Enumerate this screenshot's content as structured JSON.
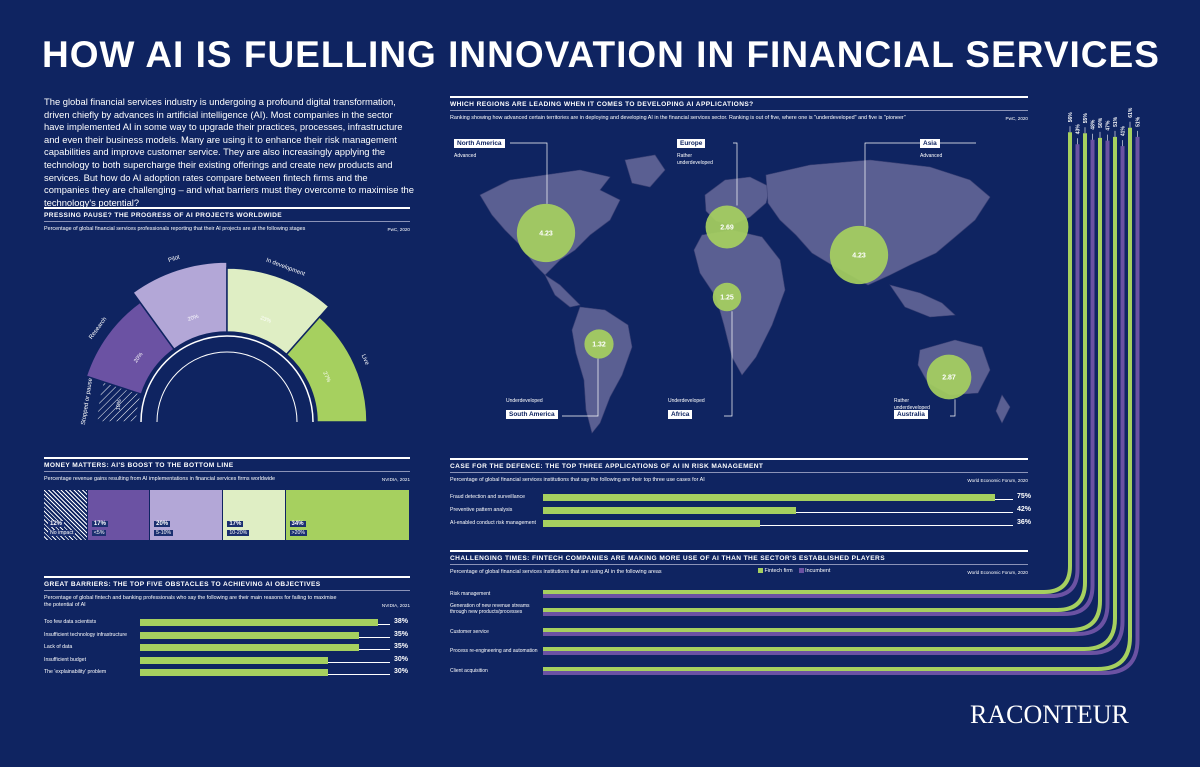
{
  "title": "HOW AI IS FUELLING INNOVATION IN FINANCIAL SERVICES",
  "intro": "The global financial services industry is undergoing a profound digital transformation, driven chiefly by advances in artificial intelligence (AI). Most companies in the sector have implemented AI in some way to upgrade their practices, processes, infrastructure and even their business models. Many are using it to enhance their risk management capabilities and improve customer service. They are also increasingly applying the technology to both supercharge their existing offerings and create new products and services. But how do AI adoption rates compare between fintech firms and the companies they are challenging – and what barriers must they overcome to maximise the technology's potential?",
  "logo": "RACONTEUR",
  "colors": {
    "bg": "#0f2461",
    "green": "#a6d05f",
    "purple": "#6b52a3",
    "lilac": "#b3a7d7",
    "pale": "#dfeec4",
    "map": "#5a5f92"
  },
  "chart_data": [
    {
      "id": "ai-projects",
      "type": "pie",
      "title": "PRESSING PAUSE? THE PROGRESS OF AI PROJECTS WORLDWIDE",
      "subtitle": "Percentage of global financial services professionals reporting that their AI projects are at the following stages",
      "source": "PwC, 2020",
      "categories": [
        "Stopped or paused",
        "Research",
        "Pilot",
        "In development",
        "Live"
      ],
      "values": [
        10,
        20,
        20,
        23,
        27
      ],
      "labels": [
        "10%",
        "20%",
        "20%",
        "23%",
        "27%"
      ]
    },
    {
      "id": "regions",
      "type": "scatter",
      "title": "WHICH REGIONS ARE LEADING WHEN IT COMES TO DEVELOPING AI APPLICATIONS?",
      "subtitle": "Ranking showing how advanced certain territories are in deploying and developing AI in the financial services sector. Ranking is out of five, where one is \"underdeveloped\" and five is \"pioneer\"",
      "source": "PwC, 2020",
      "regions": [
        {
          "name": "North America",
          "desc": "Advanced",
          "value": 4.23,
          "label": "4.23"
        },
        {
          "name": "Europe",
          "desc": "Rather underdeveloped",
          "value": 2.69,
          "label": "2.69"
        },
        {
          "name": "Asia",
          "desc": "Advanced",
          "value": 4.23,
          "label": "4.23"
        },
        {
          "name": "Africa",
          "desc": "Underdeveloped",
          "value": 1.25,
          "label": "1.25"
        },
        {
          "name": "South America",
          "desc": "Underdeveloped",
          "value": 1.32,
          "label": "1.32"
        },
        {
          "name": "Australia",
          "desc": "Rather underdeveloped",
          "value": 2.87,
          "label": "2.87"
        }
      ]
    },
    {
      "id": "money-matters",
      "type": "bar",
      "title": "MONEY MATTERS: AI'S BOOST TO THE BOTTOM LINE",
      "subtitle": "Percentage revenue gains resulting from AI implementations in financial services firms worldwide",
      "source": "NVIDIA, 2021",
      "categories": [
        "No impact",
        "<5%",
        "5-10%",
        "10-20%",
        ">20%"
      ],
      "values": [
        12,
        17,
        20,
        17,
        34
      ],
      "labels": [
        "12%",
        "17%",
        "20%",
        "17%",
        "34%"
      ]
    },
    {
      "id": "risk",
      "type": "bar",
      "title": "CASE FOR THE DEFENCE: THE TOP THREE APPLICATIONS OF AI IN RISK MANAGEMENT",
      "subtitle": "Percentage of global financial services institutions that say the following are their top three use cases for AI",
      "source": "World Economic Forum, 2020",
      "categories": [
        "Fraud detection and surveillance",
        "Preventive pattern analysis",
        "AI-enabled conduct risk management"
      ],
      "values": [
        75,
        42,
        36
      ],
      "labels": [
        "75",
        "42",
        "36"
      ],
      "xlim": [
        0,
        78
      ]
    },
    {
      "id": "barriers",
      "type": "bar",
      "title": "GREAT BARRIERS: THE TOP FIVE OBSTACLES TO ACHIEVING AI OBJECTIVES",
      "subtitle": "Percentage of global fintech and banking professionals who say the following are their main reasons for failing to maximise the potential of AI",
      "source": "NVIDIA, 2021",
      "categories": [
        "Too few data scientists",
        "Insufficient technology infrastructure",
        "Lack of data",
        "Insufficient budget",
        "The 'explainability' problem"
      ],
      "values": [
        38,
        35,
        35,
        30,
        30
      ],
      "labels": [
        "38",
        "35",
        "35",
        "30",
        "30"
      ],
      "xlim": [
        0,
        40
      ]
    },
    {
      "id": "fintech",
      "type": "bar",
      "title": "CHALLENGING TIMES: FINTECH COMPANIES ARE MAKING MORE USE OF AI THAN THE SECTOR'S ESTABLISHED PLAYERS",
      "subtitle": "Percentage of global financial services institutions that are using AI in the following areas",
      "source": "World Economic Forum, 2020",
      "categories": [
        "Risk management",
        "Generation of new revenue streams through new products/processes",
        "Customer service",
        "Process re-engineering and automation",
        "Client acquisition"
      ],
      "series": [
        {
          "name": "Fintech firm",
          "values": [
            56,
            55,
            50,
            51,
            61
          ],
          "labels": [
            "56%",
            "55%",
            "50%",
            "51%",
            "61%"
          ]
        },
        {
          "name": "Incumbent",
          "values": [
            43,
            48,
            47,
            41,
            51
          ],
          "labels": [
            "43%",
            "48%",
            "47%",
            "41%",
            "51%"
          ]
        }
      ]
    }
  ],
  "pct_sign": "%"
}
